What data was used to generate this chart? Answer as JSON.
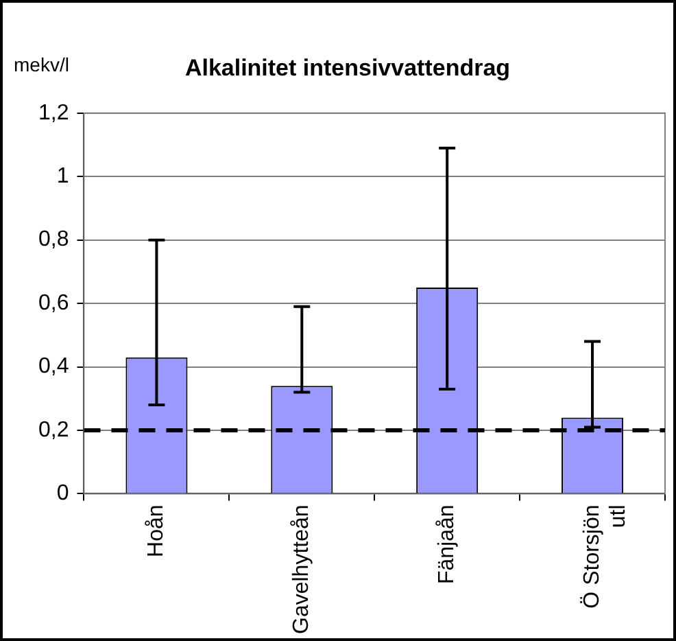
{
  "chart_data": {
    "type": "bar",
    "title": "Alkalinitet intensivvattendrag",
    "ylabel": "mekv/l",
    "categories": [
      "Hoån",
      "Gavelhytteån",
      "Fänjaån",
      "Ö Storsjön utl"
    ],
    "values": [
      0.43,
      0.34,
      0.65,
      0.24
    ],
    "color": "#9999ff",
    "errors": [
      [
        0.28,
        0.8
      ],
      [
        0.32,
        0.59
      ],
      [
        0.33,
        1.09
      ],
      [
        0.21,
        0.48
      ]
    ],
    "ylim": [
      0,
      1.2
    ],
    "yticks": [
      0,
      {
        "value": 0.2,
        "label": "0,2"
      },
      {
        "value": 0.4,
        "label": "0,4"
      },
      {
        "value": 0.6,
        "label": "0,6"
      },
      {
        "value": 0.8,
        "label": "0,8"
      },
      1,
      {
        "value": 1.2,
        "label": "1,2"
      }
    ],
    "ref_lines": [
      {
        "axis": "y",
        "value": 0.2,
        "color": "#000000",
        "line_style": "dashed"
      }
    ],
    "grid": "y",
    "legend": false
  }
}
